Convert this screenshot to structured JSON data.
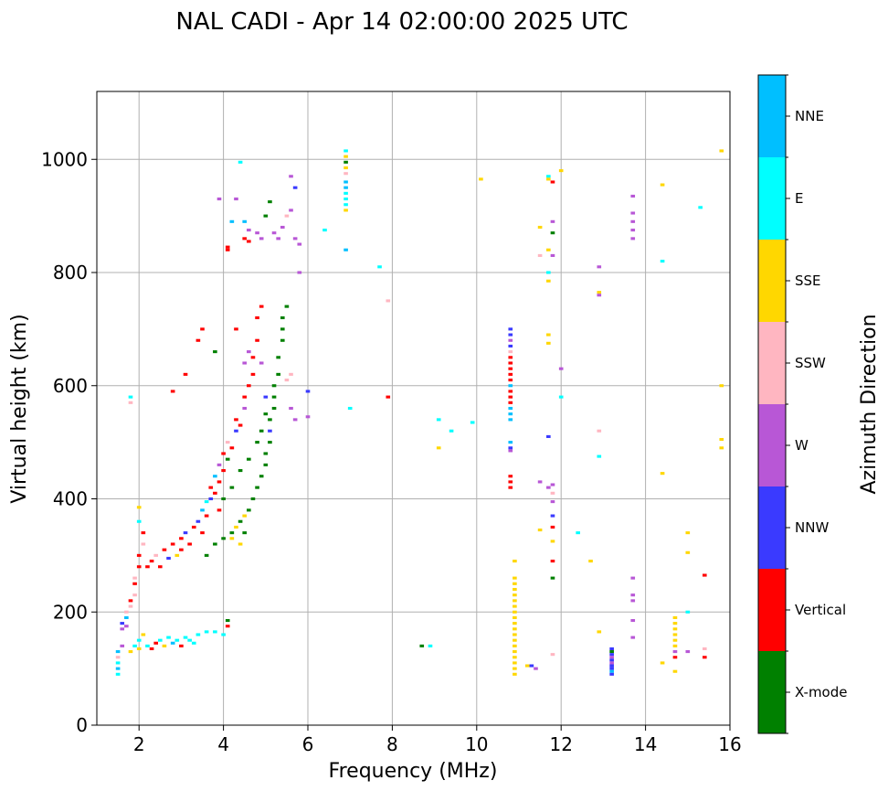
{
  "chart_data": {
    "type": "scatter",
    "title": "NAL CADI - Apr 14 02:00:00 2025 UTC",
    "xlabel": "Frequency (MHz)",
    "ylabel": "Virtual height (km)",
    "xlim": [
      1,
      16
    ],
    "ylim": [
      0,
      1120
    ],
    "xticks": [
      2,
      4,
      6,
      8,
      10,
      12,
      14,
      16
    ],
    "yticks": [
      0,
      200,
      400,
      600,
      800,
      1000
    ],
    "grid": true,
    "colorbar": {
      "label": "Azimuth Direction",
      "categories": [
        {
          "name": "X-mode",
          "color": "#008000"
        },
        {
          "name": "Vertical",
          "color": "#ff0000"
        },
        {
          "name": "NNW",
          "color": "#3a3aff"
        },
        {
          "name": "W",
          "color": "#b857d6"
        },
        {
          "name": "SSW",
          "color": "#ffb6c1"
        },
        {
          "name": "SSE",
          "color": "#ffd700"
        },
        {
          "name": "E",
          "color": "#00ffff"
        },
        {
          "name": "NNE",
          "color": "#00bfff"
        }
      ]
    },
    "marker_size_mhz": 0.1,
    "marker_size_km": 5,
    "points": [
      [
        1.5,
        90,
        "E"
      ],
      [
        1.5,
        100,
        "NNE"
      ],
      [
        1.5,
        110,
        "E"
      ],
      [
        1.5,
        120,
        "SSW"
      ],
      [
        1.5,
        130,
        "NNE"
      ],
      [
        1.6,
        140,
        "W"
      ],
      [
        1.6,
        170,
        "W"
      ],
      [
        1.6,
        180,
        "NNW"
      ],
      [
        1.7,
        190,
        "NNE"
      ],
      [
        1.7,
        175,
        "W"
      ],
      [
        1.7,
        200,
        "SSW"
      ],
      [
        1.8,
        210,
        "SSW"
      ],
      [
        1.8,
        220,
        "Vertical"
      ],
      [
        1.9,
        230,
        "SSW"
      ],
      [
        1.9,
        250,
        "Vertical"
      ],
      [
        1.9,
        260,
        "SSW"
      ],
      [
        2.0,
        280,
        "Vertical"
      ],
      [
        2.0,
        300,
        "Vertical"
      ],
      [
        2.1,
        320,
        "SSW"
      ],
      [
        2.1,
        340,
        "Vertical"
      ],
      [
        2.0,
        360,
        "E"
      ],
      [
        2.0,
        385,
        "SSE"
      ],
      [
        1.8,
        580,
        "E"
      ],
      [
        1.8,
        570,
        "SSW"
      ],
      [
        1.8,
        130,
        "SSE"
      ],
      [
        1.9,
        140,
        "E"
      ],
      [
        2.0,
        135,
        "SSE"
      ],
      [
        2.0,
        150,
        "E"
      ],
      [
        2.1,
        160,
        "SSE"
      ],
      [
        2.2,
        140,
        "E"
      ],
      [
        2.3,
        135,
        "Vertical"
      ],
      [
        2.4,
        145,
        "Vertical"
      ],
      [
        2.5,
        150,
        "E"
      ],
      [
        2.6,
        140,
        "SSE"
      ],
      [
        2.7,
        155,
        "E"
      ],
      [
        2.8,
        145,
        "NNE"
      ],
      [
        2.9,
        150,
        "E"
      ],
      [
        3.0,
        140,
        "Vertical"
      ],
      [
        3.1,
        155,
        "E"
      ],
      [
        3.2,
        150,
        "E"
      ],
      [
        3.3,
        145,
        "E"
      ],
      [
        3.4,
        160,
        "E"
      ],
      [
        3.6,
        165,
        "E"
      ],
      [
        3.8,
        165,
        "E"
      ],
      [
        4.0,
        160,
        "E"
      ],
      [
        4.1,
        175,
        "Vertical"
      ],
      [
        4.1,
        185,
        "X-mode"
      ],
      [
        2.2,
        280,
        "Vertical"
      ],
      [
        2.3,
        290,
        "Vertical"
      ],
      [
        2.4,
        300,
        "SSW"
      ],
      [
        2.5,
        280,
        "Vertical"
      ],
      [
        2.6,
        310,
        "Vertical"
      ],
      [
        2.7,
        295,
        "NNW"
      ],
      [
        2.8,
        320,
        "Vertical"
      ],
      [
        2.9,
        300,
        "SSE"
      ],
      [
        3.0,
        310,
        "Vertical"
      ],
      [
        3.0,
        330,
        "Vertical"
      ],
      [
        3.1,
        340,
        "NNW"
      ],
      [
        3.2,
        320,
        "Vertical"
      ],
      [
        3.3,
        350,
        "Vertical"
      ],
      [
        3.4,
        360,
        "NNW"
      ],
      [
        3.5,
        340,
        "Vertical"
      ],
      [
        3.5,
        380,
        "NNE"
      ],
      [
        3.6,
        370,
        "Vertical"
      ],
      [
        3.6,
        395,
        "E"
      ],
      [
        3.7,
        400,
        "NNW"
      ],
      [
        3.7,
        420,
        "Vertical"
      ],
      [
        3.8,
        410,
        "Vertical"
      ],
      [
        3.8,
        440,
        "NNE"
      ],
      [
        3.9,
        430,
        "Vertical"
      ],
      [
        3.9,
        460,
        "W"
      ],
      [
        4.0,
        450,
        "Vertical"
      ],
      [
        4.0,
        480,
        "Vertical"
      ],
      [
        4.1,
        470,
        "X-mode"
      ],
      [
        4.1,
        500,
        "SSW"
      ],
      [
        4.2,
        490,
        "Vertical"
      ],
      [
        4.3,
        520,
        "NNW"
      ],
      [
        4.3,
        540,
        "Vertical"
      ],
      [
        4.4,
        530,
        "Vertical"
      ],
      [
        4.5,
        560,
        "W"
      ],
      [
        4.5,
        580,
        "Vertical"
      ],
      [
        4.6,
        600,
        "Vertical"
      ],
      [
        4.7,
        620,
        "Vertical"
      ],
      [
        4.7,
        650,
        "Vertical"
      ],
      [
        4.8,
        680,
        "Vertical"
      ],
      [
        4.8,
        720,
        "Vertical"
      ],
      [
        4.9,
        740,
        "Vertical"
      ],
      [
        3.6,
        300,
        "X-mode"
      ],
      [
        3.8,
        320,
        "X-mode"
      ],
      [
        4.0,
        330,
        "X-mode"
      ],
      [
        4.2,
        340,
        "X-mode"
      ],
      [
        4.3,
        350,
        "SSE"
      ],
      [
        4.4,
        360,
        "X-mode"
      ],
      [
        4.5,
        370,
        "SSE"
      ],
      [
        4.6,
        380,
        "X-mode"
      ],
      [
        4.7,
        400,
        "X-mode"
      ],
      [
        4.8,
        420,
        "X-mode"
      ],
      [
        4.9,
        440,
        "X-mode"
      ],
      [
        5.0,
        460,
        "X-mode"
      ],
      [
        5.0,
        480,
        "X-mode"
      ],
      [
        5.1,
        500,
        "X-mode"
      ],
      [
        5.1,
        520,
        "NNW"
      ],
      [
        5.1,
        540,
        "X-mode"
      ],
      [
        5.2,
        560,
        "X-mode"
      ],
      [
        5.2,
        580,
        "X-mode"
      ],
      [
        5.2,
        600,
        "X-mode"
      ],
      [
        5.3,
        620,
        "X-mode"
      ],
      [
        5.3,
        650,
        "X-mode"
      ],
      [
        5.4,
        680,
        "X-mode"
      ],
      [
        5.4,
        700,
        "X-mode"
      ],
      [
        5.4,
        720,
        "X-mode"
      ],
      [
        5.5,
        740,
        "X-mode"
      ],
      [
        5.6,
        560,
        "W"
      ],
      [
        5.7,
        540,
        "W"
      ],
      [
        5.5,
        610,
        "SSW"
      ],
      [
        5.6,
        620,
        "SSW"
      ],
      [
        4.2,
        330,
        "SSE"
      ],
      [
        4.4,
        320,
        "SSE"
      ],
      [
        4.5,
        340,
        "X-mode"
      ],
      [
        3.9,
        380,
        "Vertical"
      ],
      [
        4.0,
        400,
        "X-mode"
      ],
      [
        4.2,
        420,
        "X-mode"
      ],
      [
        4.4,
        450,
        "X-mode"
      ],
      [
        4.6,
        470,
        "X-mode"
      ],
      [
        4.8,
        500,
        "X-mode"
      ],
      [
        4.9,
        520,
        "X-mode"
      ],
      [
        5.0,
        550,
        "X-mode"
      ],
      [
        5.0,
        580,
        "NNW"
      ],
      [
        2.8,
        590,
        "Vertical"
      ],
      [
        3.1,
        620,
        "Vertical"
      ],
      [
        3.4,
        680,
        "Vertical"
      ],
      [
        3.5,
        700,
        "Vertical"
      ],
      [
        3.8,
        660,
        "X-mode"
      ],
      [
        4.3,
        700,
        "Vertical"
      ],
      [
        4.5,
        640,
        "W"
      ],
      [
        4.6,
        660,
        "W"
      ],
      [
        4.9,
        640,
        "W"
      ],
      [
        4.1,
        840,
        "Vertical"
      ],
      [
        4.1,
        845,
        "Vertical"
      ],
      [
        4.3,
        930,
        "W"
      ],
      [
        4.4,
        995,
        "E"
      ],
      [
        4.5,
        890,
        "NNE"
      ],
      [
        4.6,
        875,
        "W"
      ],
      [
        4.6,
        855,
        "Vertical"
      ],
      [
        4.8,
        870,
        "W"
      ],
      [
        4.9,
        860,
        "W"
      ],
      [
        5.0,
        900,
        "X-mode"
      ],
      [
        5.1,
        925,
        "X-mode"
      ],
      [
        5.2,
        870,
        "W"
      ],
      [
        5.3,
        860,
        "W"
      ],
      [
        5.4,
        880,
        "W"
      ],
      [
        5.5,
        900,
        "SSW"
      ],
      [
        5.6,
        910,
        "W"
      ],
      [
        5.6,
        970,
        "W"
      ],
      [
        5.7,
        950,
        "NNW"
      ],
      [
        5.7,
        860,
        "W"
      ],
      [
        5.8,
        800,
        "W"
      ],
      [
        5.8,
        850,
        "W"
      ],
      [
        3.9,
        930,
        "W"
      ],
      [
        4.2,
        890,
        "NNE"
      ],
      [
        4.5,
        860,
        "Vertical"
      ],
      [
        6.0,
        590,
        "NNW"
      ],
      [
        6.0,
        545,
        "W"
      ],
      [
        6.4,
        875,
        "E"
      ],
      [
        6.9,
        1015,
        "E"
      ],
      [
        6.9,
        1005,
        "SSE"
      ],
      [
        6.9,
        995,
        "X-mode"
      ],
      [
        6.9,
        985,
        "SSE"
      ],
      [
        6.9,
        975,
        "SSW"
      ],
      [
        6.9,
        960,
        "NNE"
      ],
      [
        6.9,
        950,
        "NNE"
      ],
      [
        6.9,
        940,
        "E"
      ],
      [
        6.9,
        930,
        "E"
      ],
      [
        6.9,
        920,
        "E"
      ],
      [
        6.9,
        910,
        "SSE"
      ],
      [
        6.9,
        840,
        "NNE"
      ],
      [
        7.0,
        560,
        "E"
      ],
      [
        7.7,
        810,
        "E"
      ],
      [
        7.9,
        580,
        "Vertical"
      ],
      [
        7.9,
        750,
        "SSW"
      ],
      [
        8.7,
        140,
        "X-mode"
      ],
      [
        8.9,
        140,
        "E"
      ],
      [
        9.1,
        540,
        "E"
      ],
      [
        9.1,
        490,
        "SSE"
      ],
      [
        9.4,
        520,
        "E"
      ],
      [
        9.9,
        535,
        "E"
      ],
      [
        10.1,
        965,
        "SSE"
      ],
      [
        10.8,
        700,
        "NNW"
      ],
      [
        10.8,
        690,
        "NNW"
      ],
      [
        10.8,
        680,
        "W"
      ],
      [
        10.8,
        670,
        "NNW"
      ],
      [
        10.8,
        660,
        "SSW"
      ],
      [
        10.8,
        650,
        "Vertical"
      ],
      [
        10.8,
        640,
        "Vertical"
      ],
      [
        10.8,
        630,
        "Vertical"
      ],
      [
        10.8,
        620,
        "Vertical"
      ],
      [
        10.8,
        610,
        "Vertical"
      ],
      [
        10.8,
        600,
        "NNE"
      ],
      [
        10.8,
        590,
        "Vertical"
      ],
      [
        10.8,
        580,
        "Vertical"
      ],
      [
        10.8,
        570,
        "Vertical"
      ],
      [
        10.8,
        560,
        "NNE"
      ],
      [
        10.8,
        550,
        "NNE"
      ],
      [
        10.8,
        540,
        "NNE"
      ],
      [
        10.8,
        500,
        "NNE"
      ],
      [
        10.8,
        490,
        "NNW"
      ],
      [
        10.8,
        485,
        "W"
      ],
      [
        10.8,
        440,
        "Vertical"
      ],
      [
        10.8,
        430,
        "Vertical"
      ],
      [
        10.8,
        420,
        "Vertical"
      ],
      [
        10.9,
        290,
        "SSE"
      ],
      [
        10.9,
        260,
        "SSE"
      ],
      [
        10.9,
        250,
        "SSE"
      ],
      [
        10.9,
        240,
        "SSE"
      ],
      [
        10.9,
        230,
        "SSE"
      ],
      [
        10.9,
        220,
        "SSE"
      ],
      [
        10.9,
        210,
        "SSE"
      ],
      [
        10.9,
        200,
        "SSE"
      ],
      [
        10.9,
        190,
        "SSE"
      ],
      [
        10.9,
        180,
        "SSE"
      ],
      [
        10.9,
        170,
        "SSE"
      ],
      [
        10.9,
        160,
        "SSE"
      ],
      [
        10.9,
        150,
        "SSE"
      ],
      [
        10.9,
        140,
        "SSE"
      ],
      [
        10.9,
        130,
        "SSE"
      ],
      [
        10.9,
        120,
        "SSE"
      ],
      [
        10.9,
        110,
        "SSE"
      ],
      [
        10.9,
        100,
        "SSE"
      ],
      [
        10.9,
        90,
        "SSE"
      ],
      [
        11.2,
        105,
        "SSE"
      ],
      [
        11.3,
        105,
        "NNW"
      ],
      [
        11.4,
        100,
        "W"
      ],
      [
        11.5,
        430,
        "W"
      ],
      [
        11.5,
        345,
        "SSE"
      ],
      [
        11.5,
        880,
        "SSE"
      ],
      [
        11.5,
        830,
        "SSW"
      ],
      [
        11.7,
        970,
        "E"
      ],
      [
        11.7,
        965,
        "SSE"
      ],
      [
        11.7,
        840,
        "SSE"
      ],
      [
        11.7,
        800,
        "E"
      ],
      [
        11.7,
        785,
        "SSE"
      ],
      [
        11.7,
        690,
        "SSE"
      ],
      [
        11.7,
        675,
        "SSE"
      ],
      [
        11.7,
        510,
        "NNW"
      ],
      [
        11.7,
        420,
        "W"
      ],
      [
        11.8,
        960,
        "Vertical"
      ],
      [
        11.8,
        890,
        "W"
      ],
      [
        11.8,
        870,
        "X-mode"
      ],
      [
        11.8,
        830,
        "W"
      ],
      [
        11.8,
        425,
        "W"
      ],
      [
        11.8,
        410,
        "SSW"
      ],
      [
        11.8,
        395,
        "W"
      ],
      [
        11.8,
        370,
        "NNW"
      ],
      [
        11.8,
        350,
        "Vertical"
      ],
      [
        11.8,
        325,
        "SSE"
      ],
      [
        11.8,
        290,
        "Vertical"
      ],
      [
        11.8,
        260,
        "X-mode"
      ],
      [
        11.8,
        125,
        "SSW"
      ],
      [
        12.0,
        980,
        "SSE"
      ],
      [
        12.0,
        630,
        "W"
      ],
      [
        12.0,
        580,
        "E"
      ],
      [
        12.4,
        340,
        "E"
      ],
      [
        12.7,
        290,
        "SSE"
      ],
      [
        12.9,
        810,
        "W"
      ],
      [
        12.9,
        765,
        "SSE"
      ],
      [
        12.9,
        760,
        "W"
      ],
      [
        12.9,
        520,
        "SSW"
      ],
      [
        12.9,
        475,
        "E"
      ],
      [
        12.9,
        165,
        "SSE"
      ],
      [
        13.2,
        135,
        "NNW"
      ],
      [
        13.2,
        130,
        "X-mode"
      ],
      [
        13.2,
        125,
        "NNW"
      ],
      [
        13.2,
        120,
        "W"
      ],
      [
        13.2,
        115,
        "NNW"
      ],
      [
        13.2,
        110,
        "W"
      ],
      [
        13.2,
        105,
        "NNW"
      ],
      [
        13.2,
        100,
        "NNW"
      ],
      [
        13.2,
        95,
        "NNE"
      ],
      [
        13.2,
        90,
        "NNW"
      ],
      [
        13.7,
        935,
        "W"
      ],
      [
        13.7,
        905,
        "W"
      ],
      [
        13.7,
        890,
        "W"
      ],
      [
        13.7,
        875,
        "W"
      ],
      [
        13.7,
        860,
        "W"
      ],
      [
        13.7,
        260,
        "W"
      ],
      [
        13.7,
        230,
        "W"
      ],
      [
        13.7,
        220,
        "W"
      ],
      [
        13.7,
        185,
        "W"
      ],
      [
        13.7,
        155,
        "W"
      ],
      [
        14.4,
        955,
        "SSE"
      ],
      [
        14.4,
        820,
        "E"
      ],
      [
        14.4,
        445,
        "SSE"
      ],
      [
        14.4,
        110,
        "SSE"
      ],
      [
        14.7,
        190,
        "SSE"
      ],
      [
        14.7,
        180,
        "SSE"
      ],
      [
        14.7,
        170,
        "SSE"
      ],
      [
        14.7,
        160,
        "SSE"
      ],
      [
        14.7,
        150,
        "SSE"
      ],
      [
        14.7,
        140,
        "SSE"
      ],
      [
        14.7,
        130,
        "W"
      ],
      [
        14.7,
        120,
        "Vertical"
      ],
      [
        14.7,
        95,
        "SSE"
      ],
      [
        15.0,
        340,
        "SSE"
      ],
      [
        15.0,
        305,
        "SSE"
      ],
      [
        15.0,
        200,
        "E"
      ],
      [
        15.0,
        130,
        "W"
      ],
      [
        15.3,
        915,
        "E"
      ],
      [
        15.4,
        265,
        "Vertical"
      ],
      [
        15.4,
        135,
        "SSW"
      ],
      [
        15.4,
        120,
        "Vertical"
      ],
      [
        15.8,
        1015,
        "SSE"
      ],
      [
        15.8,
        600,
        "SSE"
      ],
      [
        15.8,
        505,
        "SSE"
      ],
      [
        15.8,
        490,
        "SSE"
      ]
    ]
  }
}
